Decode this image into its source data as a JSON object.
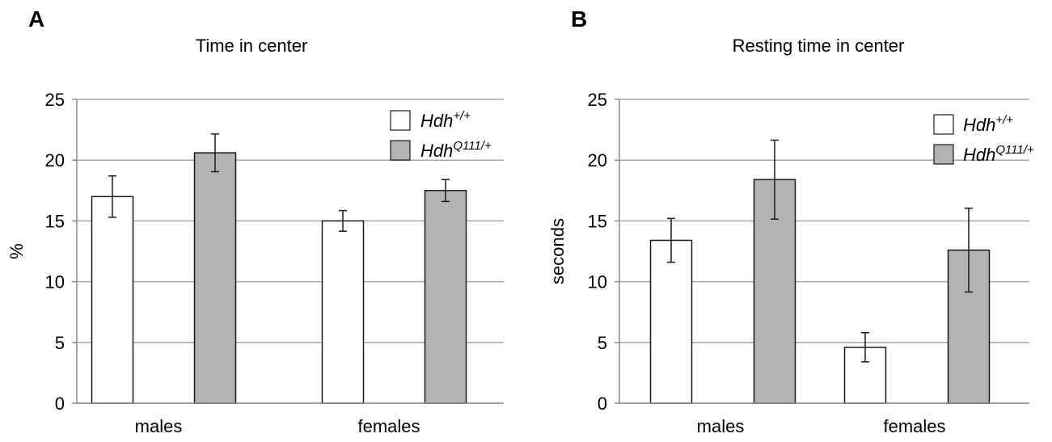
{
  "chart_data": [
    {
      "type": "bar",
      "panel_label": "A",
      "title": "Time in center",
      "xlabel": "",
      "ylabel": "%",
      "ylim": [
        0,
        25
      ],
      "yticks": [
        0,
        5,
        10,
        15,
        20,
        25
      ],
      "grid": true,
      "legend_position": "top-right",
      "categories": [
        "males",
        "females"
      ],
      "series": [
        {
          "name": "Hdh+/+",
          "name_base": "Hdh",
          "name_sup": "+/+",
          "color": "#ffffff",
          "values": [
            17.0,
            15.0
          ],
          "errors": [
            1.7,
            0.85
          ]
        },
        {
          "name": "HdhQ111/+",
          "name_base": "Hdh",
          "name_sup": "Q111/+",
          "color": "#b3b3b3",
          "values": [
            20.6,
            17.5
          ],
          "errors": [
            1.55,
            0.9
          ]
        }
      ]
    },
    {
      "type": "bar",
      "panel_label": "B",
      "title": "Resting time in center",
      "xlabel": "",
      "ylabel": "seconds",
      "ylim": [
        0,
        25
      ],
      "yticks": [
        0,
        5,
        10,
        15,
        20,
        25
      ],
      "grid": true,
      "legend_position": "top-right",
      "categories": [
        "males",
        "females"
      ],
      "series": [
        {
          "name": "Hdh+/+",
          "name_base": "Hdh",
          "name_sup": "+/+",
          "color": "#ffffff",
          "values": [
            13.4,
            4.6
          ],
          "errors": [
            1.8,
            1.2
          ]
        },
        {
          "name": "HdhQ111/+",
          "name_base": "Hdh",
          "name_sup": "Q111/+",
          "color": "#b3b3b3",
          "values": [
            18.4,
            12.6
          ],
          "errors": [
            3.25,
            3.45
          ]
        }
      ]
    }
  ]
}
